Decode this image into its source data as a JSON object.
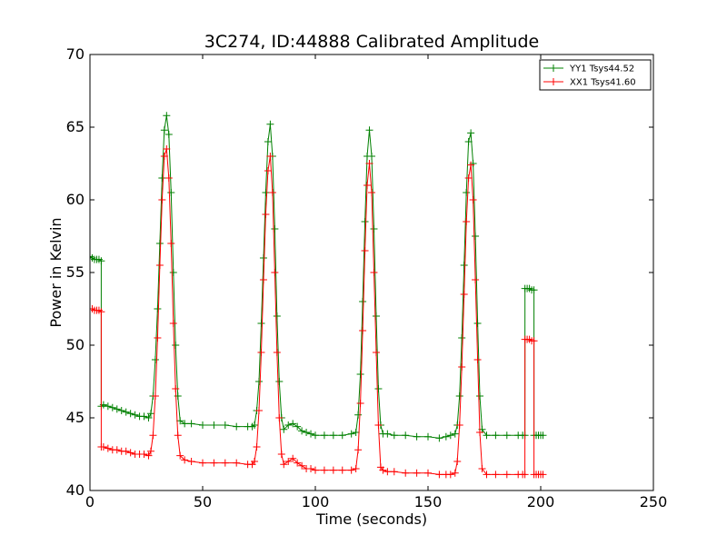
{
  "chart_data": {
    "type": "line",
    "title": "3C274, ID:44888 Calibrated Amplitude",
    "xlabel": "Time (seconds)",
    "ylabel": "Power in Kelvin",
    "xlim": [
      0,
      250
    ],
    "ylim": [
      40,
      70
    ],
    "xticks": [
      0,
      50,
      100,
      150,
      200,
      250
    ],
    "yticks": [
      40,
      45,
      50,
      55,
      60,
      65,
      70
    ],
    "grid": false,
    "legend_position": "top-right",
    "series": [
      {
        "name": "YY1 Tsys44.52",
        "color": "#008000",
        "marker": "plus",
        "x": [
          0,
          1,
          2,
          3,
          4,
          5,
          5.01,
          6,
          8,
          10,
          12,
          14,
          16,
          18,
          20,
          22,
          24,
          26,
          27,
          28,
          29,
          30,
          31,
          32,
          33,
          34,
          35,
          36,
          37,
          38,
          39,
          40,
          42,
          45,
          50,
          55,
          60,
          65,
          70,
          72,
          73,
          74,
          75,
          76,
          77,
          78,
          79,
          80,
          81,
          82,
          83,
          84,
          85,
          86,
          88,
          90,
          92,
          94,
          96,
          98,
          100,
          104,
          108,
          112,
          116,
          118,
          119,
          120,
          121,
          122,
          123,
          124,
          125,
          126,
          127,
          128,
          129,
          130,
          132,
          135,
          140,
          145,
          150,
          155,
          158,
          160,
          162,
          163,
          164,
          165,
          166,
          167,
          168,
          169,
          170,
          171,
          172,
          173,
          174,
          176,
          180,
          185,
          190,
          192,
          193,
          193.01,
          194,
          195,
          196,
          197,
          197.01,
          198,
          199,
          200,
          201
        ],
        "y": [
          56.1,
          56.0,
          55.9,
          55.9,
          55.9,
          55.8,
          45.8,
          45.9,
          45.8,
          45.7,
          45.6,
          45.5,
          45.4,
          45.3,
          45.2,
          45.1,
          45.1,
          45.0,
          45.3,
          46.5,
          49.0,
          52.5,
          57.0,
          61.5,
          64.8,
          65.8,
          64.5,
          60.5,
          55.0,
          50.0,
          46.5,
          44.8,
          44.6,
          44.6,
          44.5,
          44.5,
          44.5,
          44.4,
          44.4,
          44.4,
          44.5,
          45.5,
          47.5,
          51.5,
          56.0,
          60.5,
          64.0,
          65.2,
          63.0,
          58.0,
          52.0,
          47.5,
          45.0,
          44.2,
          44.5,
          44.6,
          44.4,
          44.1,
          44.0,
          43.9,
          43.8,
          43.8,
          43.8,
          43.8,
          43.9,
          44.0,
          45.2,
          48.0,
          53.0,
          58.5,
          63.0,
          64.8,
          63.0,
          58.0,
          52.0,
          47.0,
          44.5,
          43.9,
          43.9,
          43.8,
          43.8,
          43.7,
          43.7,
          43.6,
          43.7,
          43.8,
          43.9,
          44.5,
          46.5,
          50.5,
          55.5,
          60.5,
          64.0,
          64.6,
          62.5,
          57.5,
          51.5,
          46.5,
          44.2,
          43.8,
          43.8,
          43.8,
          43.8,
          43.8,
          43.8,
          53.9,
          53.9,
          53.9,
          53.8,
          53.8,
          43.8,
          43.8,
          43.8,
          43.8,
          43.8
        ]
      },
      {
        "name": "XX1 Tsys41.60",
        "color": "#ff0000",
        "marker": "plus",
        "x": [
          0,
          1,
          2,
          3,
          4,
          5,
          5.01,
          6,
          8,
          10,
          12,
          14,
          16,
          18,
          20,
          22,
          24,
          26,
          27,
          28,
          29,
          30,
          31,
          32,
          33,
          34,
          35,
          36,
          37,
          38,
          39,
          40,
          42,
          45,
          50,
          55,
          60,
          65,
          70,
          72,
          73,
          74,
          75,
          76,
          77,
          78,
          79,
          80,
          81,
          82,
          83,
          84,
          85,
          86,
          88,
          90,
          92,
          94,
          96,
          98,
          100,
          104,
          108,
          112,
          116,
          118,
          119,
          120,
          121,
          122,
          123,
          124,
          125,
          126,
          127,
          128,
          129,
          130,
          132,
          135,
          140,
          145,
          150,
          155,
          158,
          160,
          162,
          163,
          164,
          165,
          166,
          167,
          168,
          169,
          170,
          171,
          172,
          173,
          174,
          176,
          180,
          185,
          190,
          192,
          193,
          193.01,
          194,
          195,
          196,
          197,
          197.01,
          198,
          199,
          200,
          201
        ],
        "y": [
          52.5,
          52.5,
          52.4,
          52.4,
          52.4,
          52.3,
          43.0,
          43.0,
          42.9,
          42.8,
          42.8,
          42.7,
          42.7,
          42.6,
          42.5,
          42.5,
          42.5,
          42.4,
          42.7,
          43.8,
          46.5,
          50.5,
          55.5,
          60.0,
          63.0,
          63.5,
          61.5,
          57.0,
          51.5,
          47.0,
          43.8,
          42.4,
          42.1,
          42.0,
          41.9,
          41.9,
          41.9,
          41.9,
          41.8,
          41.8,
          42.0,
          43.0,
          45.5,
          49.5,
          54.5,
          59.0,
          62.0,
          63.0,
          60.5,
          55.0,
          49.5,
          45.0,
          42.5,
          41.8,
          42.0,
          42.2,
          41.9,
          41.7,
          41.5,
          41.5,
          41.4,
          41.4,
          41.4,
          41.4,
          41.4,
          41.5,
          42.8,
          46.0,
          51.0,
          56.5,
          61.0,
          62.5,
          60.5,
          55.0,
          49.5,
          44.5,
          41.6,
          41.4,
          41.3,
          41.3,
          41.2,
          41.2,
          41.2,
          41.1,
          41.1,
          41.1,
          41.2,
          42.0,
          44.5,
          48.5,
          53.5,
          58.5,
          61.5,
          62.4,
          60.0,
          54.5,
          49.0,
          44.0,
          41.5,
          41.1,
          41.1,
          41.1,
          41.1,
          41.1,
          41.1,
          50.4,
          50.4,
          50.4,
          50.3,
          50.3,
          41.1,
          41.1,
          41.1,
          41.1,
          41.1
        ]
      }
    ]
  }
}
